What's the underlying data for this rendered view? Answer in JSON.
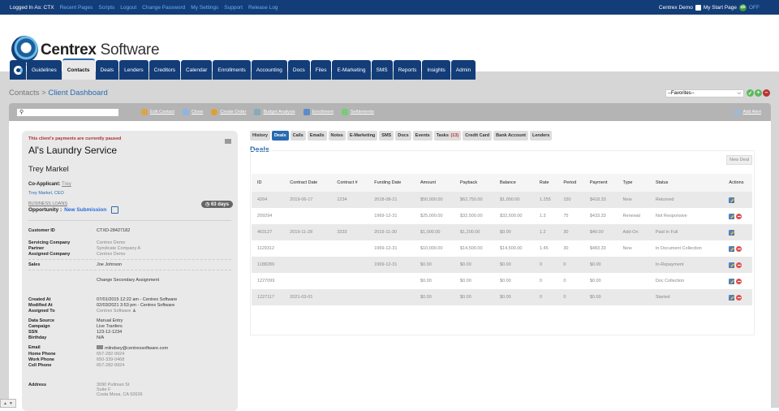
{
  "topbar": {
    "logged_in": "Logged In As: CTX",
    "links": [
      "Recent Pages",
      "Scripts",
      "Logout",
      "Change Password",
      "My Settings",
      "Support",
      "Release Log"
    ],
    "user": "Centrex Demo",
    "start_page": "My Start Page",
    "qb_label": "qb",
    "qb_status": "OFF"
  },
  "logo": {
    "bold": "Centrex",
    "light": " Software"
  },
  "nav": {
    "tabs": [
      "Guidelines",
      "Contacts",
      "Deals",
      "Lenders",
      "Creditors",
      "Calendar",
      "Enrollments",
      "Accounting",
      "Docs",
      "Files",
      "E-Marketing",
      "SMS",
      "Reports",
      "Insights",
      "Admin"
    ],
    "active": "Contacts"
  },
  "breadcrumb": {
    "parent": "Contacts",
    "sep": " > ",
    "current": "Client Dashboard"
  },
  "favorites": {
    "selected": "--Favorites--"
  },
  "toolbar": {
    "search_placeholder": "",
    "actions": [
      "Edit Contact",
      "Clone",
      "Create Order",
      "Budget Analysis",
      "Enrollment",
      "Settlements"
    ],
    "add_alert": "Add Alert"
  },
  "client": {
    "paused_notice": "This client's payments are currently paused",
    "business_name": "Al's Laundry Service",
    "person_name": "Trey Markel",
    "co_applicant_label": "Co-Applicant:",
    "co_applicant": "Trey",
    "role": "Trey Markel, CEO",
    "category": "BUSINESS LOANS",
    "opportunity_label": "Opportunity :",
    "opportunity": "New Submission",
    "days_badge": "63 days",
    "customer_id_label": "Customer ID",
    "customer_id": "CTXD-28427182",
    "servicing_company_label": "Servicing Company",
    "servicing_company": "Centrex Demo",
    "partner_label": "Partner",
    "partner": "Syndicate Company A",
    "assigned_company_label": "Assigned Company",
    "assigned_company": "Centrex Demo",
    "sales_label": "Sales",
    "sales": "Joe Johnson",
    "change_secondary": "Change Secondary Assignment",
    "created_at_label": "Created At",
    "created_at": "07/01/2015 12:22 am - Centrex Software",
    "modified_at_label": "Modified At",
    "modified_at": "02/03/2021 3:53 pm - Centrex Software",
    "assigned_to_label": "Assigned To",
    "assigned_to": "Centrex Software",
    "data_source_label": "Data Source",
    "data_source": "Manual Entry",
    "campaign_label": "Campaign",
    "campaign": "Live Tranfers",
    "ssn_label": "SSN",
    "ssn": "123-12-1234",
    "birthday_label": "Birthday",
    "birthday": "N/A",
    "email_label": "Email",
    "email": "mlindsey@centrexsoftware.com",
    "home_phone_label": "Home Phone",
    "home_phone": "657-282-9924",
    "work_phone_label": "Work Phone",
    "work_phone": "650-339-0468",
    "cell_phone_label": "Cell Phone",
    "cell_phone": "657-282-9924",
    "address_label": "Address",
    "address_1": "3090 Pullman St",
    "address_2": "Suite F",
    "address_3": "Costa Mesa, CA 92626"
  },
  "subtabs": {
    "items": [
      "History",
      "Deals",
      "Calls",
      "Emails",
      "Notes",
      "E-Marketing",
      "SMS",
      "Docs",
      "Events",
      "Tasks",
      "Credit Card",
      "Bank Account",
      "Lenders"
    ],
    "tasks_count": "(13)",
    "active": "Deals"
  },
  "deals": {
    "title": "Deals",
    "new_deal": "New Deal",
    "columns": [
      "ID",
      "Contract Date",
      "Contract #",
      "Funding Date",
      "Amount",
      "Payback",
      "Balance",
      "Rate",
      "Period",
      "Payment",
      "Type",
      "Status",
      "Actions"
    ],
    "rows": [
      [
        "4264",
        "2019-06-17",
        "1234",
        "2018-08-21",
        "$50,000.00",
        "$62,750.00",
        "$1,000.00",
        "1.255",
        "150",
        "$418.33",
        "New",
        "Returned",
        "edit"
      ],
      [
        "209294",
        "",
        "",
        "1969-12-31",
        "$25,000.00",
        "$32,500.00",
        "$32,500.00",
        "1.3",
        "75",
        "$433.33",
        "Renewal",
        "Not Responsive",
        "edit,delete"
      ],
      [
        "463127",
        "2019-11-28",
        "3333",
        "2019-11-30",
        "$1,000.00",
        "$1,200.00",
        "$0.00",
        "1.2",
        "30",
        "$40.00",
        "Add-On",
        "Paid In Full",
        "edit"
      ],
      [
        "1129312",
        "",
        "",
        "1969-12-31",
        "$10,000.00",
        "$14,500.00",
        "$14,500.00",
        "1.45",
        "30",
        "$483.33",
        "New",
        "In Document Collection",
        "edit,delete"
      ],
      [
        "1188289",
        "",
        "",
        "1969-12-31",
        "$0.00",
        "$0.00",
        "$0.00",
        "0",
        "0",
        "$0.00",
        "",
        "In-Repayment",
        "edit,delete"
      ],
      [
        "1227099",
        "",
        "",
        "",
        "$0.00",
        "$0.00",
        "$0.00",
        "0",
        "0",
        "$0.00",
        "",
        "Doc Collection",
        "edit,delete"
      ],
      [
        "1227117",
        "2021-03-01",
        "",
        "",
        "$0.00",
        "$0.00",
        "$0.00",
        "0",
        "0",
        "$0.00",
        "",
        "Started",
        "edit,delete"
      ]
    ]
  },
  "colors": {
    "brand_navy": "#133d78",
    "link_blue": "#2a6ab0",
    "alert_red": "#aa3333",
    "gray_band": "#d6d6d6"
  }
}
